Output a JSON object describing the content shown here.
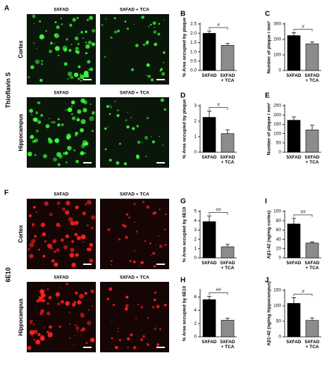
{
  "image_panels": [
    {
      "letter": "A",
      "stain": "Thioflavin S",
      "columns": [
        "5XFAD",
        "5XFAD + TCA"
      ],
      "regions": [
        "Cortex",
        "Hippocampus"
      ]
    },
    {
      "letter": "F",
      "stain": "6E10",
      "columns": [
        "5XFAD",
        "5XFAD + TCA"
      ],
      "regions": [
        "Cortex",
        "Hippocampus"
      ]
    }
  ],
  "chart_data": [
    {
      "type": "bar",
      "panel": "B",
      "ylabel": "% Area occupied by plaque",
      "categories": [
        "5XFAD",
        "5XFAD + TCA"
      ],
      "values": [
        2.0,
        1.35
      ],
      "errors": [
        0.12,
        0.1
      ],
      "colors": [
        "#000000",
        "#8c8c8c"
      ],
      "annotation": "#",
      "ylim": [
        0,
        2.5
      ],
      "yticks": [
        {
          "value": 0,
          "label": "0.0"
        },
        0.5,
        {
          "value": 1,
          "label": "1.0"
        },
        1.5,
        {
          "value": 2,
          "label": "2.0"
        },
        2.5
      ]
    },
    {
      "type": "bar",
      "panel": "C",
      "ylabel": "Number of plaque / mm²",
      "categories": [
        "5XFAD",
        "5XFAD + TCA"
      ],
      "values": [
        225,
        172
      ],
      "errors": [
        18,
        12
      ],
      "colors": [
        "#000000",
        "#8c8c8c"
      ],
      "annotation": "#",
      "ylim": [
        0,
        300
      ],
      "yticks": [
        0,
        100,
        200,
        300
      ]
    },
    {
      "type": "bar",
      "panel": "D",
      "ylabel": "% Area occupied by plaque",
      "categories": [
        "5XFAD",
        "5XFAD + TCA"
      ],
      "values": [
        2.25,
        1.2
      ],
      "errors": [
        0.4,
        0.25
      ],
      "colors": [
        "#000000",
        "#8c8c8c"
      ],
      "annotation": "#",
      "ylim": [
        0,
        3
      ],
      "yticks": [
        0,
        1,
        2,
        3
      ]
    },
    {
      "type": "bar",
      "panel": "E",
      "ylabel": "Number of plaque / mm²",
      "categories": [
        "5XFAD",
        "5XFAD + TCA"
      ],
      "values": [
        172,
        120
      ],
      "errors": [
        18,
        25
      ],
      "colors": [
        "#000000",
        "#8c8c8c"
      ],
      "ylim": [
        0,
        250
      ],
      "yticks": [
        0,
        50,
        100,
        150,
        200,
        250
      ]
    },
    {
      "type": "bar",
      "panel": "G",
      "ylabel": "% Area occupied by 6E10",
      "categories": [
        "5XFAD",
        "5XFAD + TCA"
      ],
      "values": [
        3.9,
        1.2
      ],
      "errors": [
        0.6,
        0.25
      ],
      "colors": [
        "#000000",
        "#8c8c8c"
      ],
      "annotation": "##",
      "ylim": [
        0,
        5
      ],
      "yticks": [
        0,
        1,
        2,
        3,
        4,
        5
      ]
    },
    {
      "type": "bar",
      "panel": "H",
      "ylabel": "% Area occupied by 6E10",
      "categories": [
        "5XFAD",
        "5XFAD + TCA"
      ],
      "values": [
        5.6,
        2.5
      ],
      "errors": [
        0.5,
        0.3
      ],
      "colors": [
        "#000000",
        "#8c8c8c"
      ],
      "annotation": "##",
      "ylim": [
        0,
        7
      ],
      "yticks": [
        0,
        2,
        4,
        6
      ]
    },
    {
      "type": "bar",
      "panel": "I",
      "ylabel": "Aβ1-42 (ng/mg cortex)",
      "categories": [
        "5XFAD",
        "5XFAD + TCA"
      ],
      "values": [
        73,
        32
      ],
      "errors": [
        12,
        2
      ],
      "colors": [
        "#000000",
        "#8c8c8c"
      ],
      "annotation": "##",
      "ylim": [
        0,
        100
      ],
      "yticks": [
        0,
        20,
        40,
        60,
        80,
        100
      ]
    },
    {
      "type": "bar",
      "panel": "J",
      "ylabel": "Aβ1-42 (ng/mg hippocampus)",
      "categories": [
        "5XFAD",
        "5XFAD + TCA"
      ],
      "values": [
        108,
        53
      ],
      "errors": [
        18,
        8
      ],
      "colors": [
        "#000000",
        "#8c8c8c"
      ],
      "annotation": "#",
      "ylim": [
        0,
        150
      ],
      "yticks": [
        0,
        50,
        100,
        150
      ]
    }
  ]
}
